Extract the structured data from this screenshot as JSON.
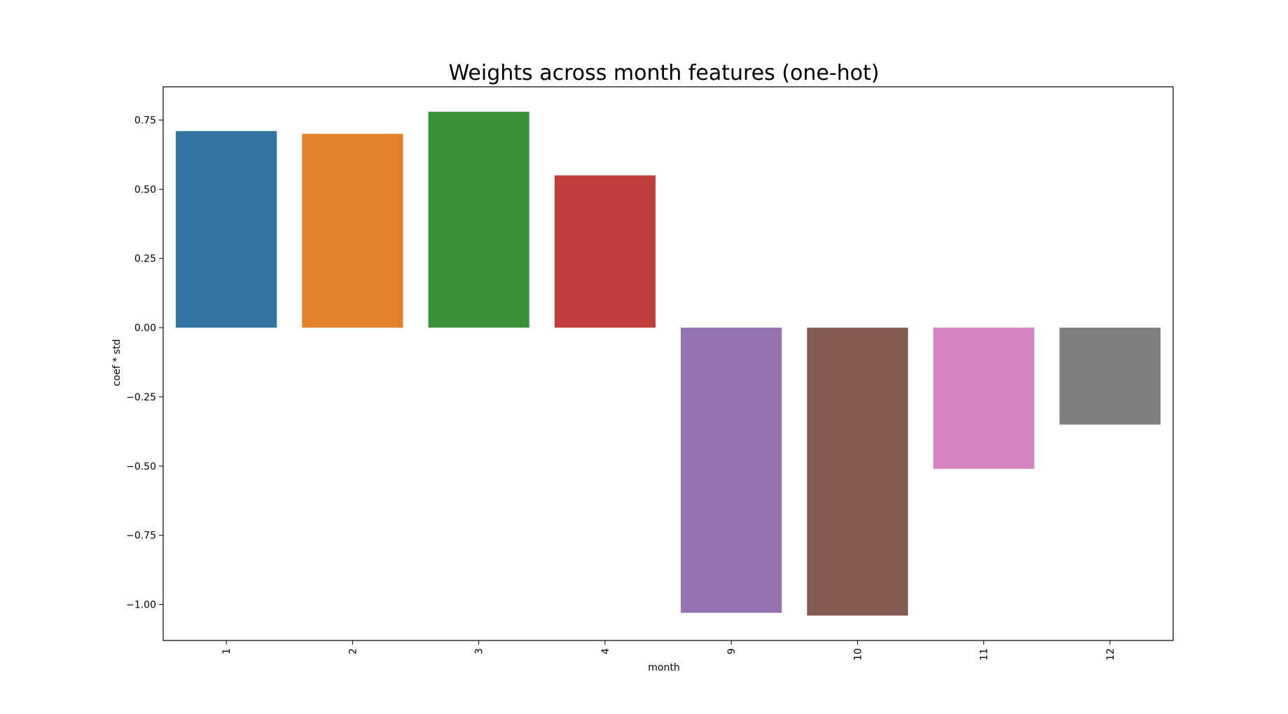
{
  "chart_data": {
    "type": "bar",
    "title": "Weights across month features (one-hot)",
    "xlabel": "month",
    "ylabel": "coef * std",
    "categories": [
      "1",
      "2",
      "3",
      "4",
      "9",
      "10",
      "11",
      "12"
    ],
    "values": [
      0.71,
      0.7,
      0.78,
      0.55,
      -1.03,
      -1.04,
      -0.51,
      -0.35
    ],
    "colors": [
      "#3274a1",
      "#e1812c",
      "#3a923a",
      "#c03d3e",
      "#9372b2",
      "#845b53",
      "#d684bd",
      "#7f7f7f"
    ],
    "ylim": [
      -1.13,
      0.87
    ],
    "yticks": [
      -1.0,
      -0.75,
      -0.5,
      -0.25,
      0.0,
      0.25,
      0.5,
      0.75
    ],
    "ytick_labels": [
      "−1.00",
      "−0.75",
      "−0.50",
      "−0.25",
      "0.00",
      "0.25",
      "0.50",
      "0.75"
    ],
    "xtick_rotation": "vertical",
    "grid": false,
    "legend": "none"
  }
}
